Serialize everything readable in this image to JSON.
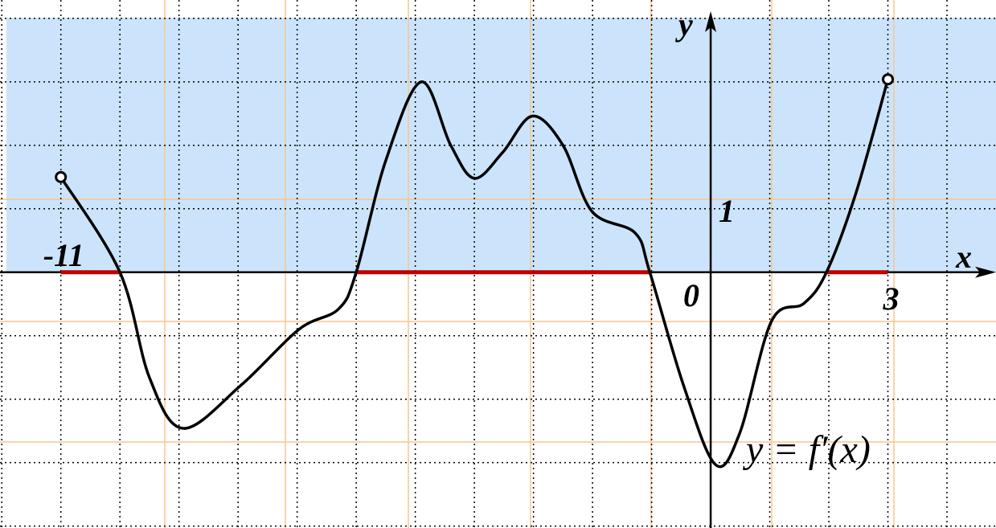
{
  "chart_data": {
    "type": "line",
    "title": "y = f′(x)",
    "x_label": "x",
    "y_label": "y",
    "origin_label": "0",
    "xlim": [
      -12.03,
      4.83
    ],
    "ylim": [
      -4.03,
      4.29
    ],
    "xticks": [
      -11,
      3
    ],
    "yticks": [
      1
    ],
    "grid": true,
    "series": [
      {
        "color": "#000000",
        "x": [
          -11,
          -10,
          -9.5,
          -8.93,
          -7.95,
          -6.97,
          -6.3,
          -6,
          -5.5,
          -4.9,
          -4.4,
          -4,
          -3.52,
          -3.02,
          -2.5,
          -2.01,
          -1.28,
          -1.03,
          -0.46,
          0.08,
          0.49,
          1.03,
          1.58,
          1.96,
          2.46,
          3
        ],
        "values": [
          1.5,
          0,
          -1.66,
          -2.46,
          -1.78,
          -0.9,
          -0.58,
          0,
          1.76,
          3.0,
          2.0,
          1.48,
          1.89,
          2.46,
          2.0,
          0.96,
          0.62,
          0,
          -1.78,
          -3.03,
          -2.54,
          -0.77,
          -0.49,
          0,
          1.25,
          3.04
        ]
      }
    ],
    "highlight_intervals": [
      [
        -11,
        -10
      ],
      [
        -6,
        -1.03
      ],
      [
        1.96,
        3
      ]
    ],
    "highlight_color": "#c00000"
  }
}
